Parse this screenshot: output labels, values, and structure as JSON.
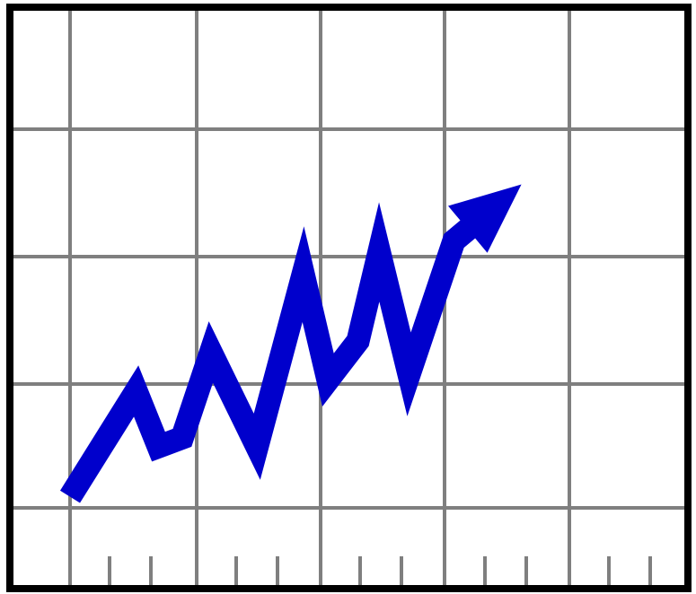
{
  "chart_data": {
    "type": "line",
    "title": "",
    "xlabel": "",
    "ylabel": "",
    "grid": true,
    "legend": "none",
    "xlim": [
      0,
      5
    ],
    "ylim": [
      0,
      4.5
    ],
    "x": [
      0,
      0.53,
      0.71,
      0.9,
      1.13,
      1.5,
      1.87,
      2.07,
      2.31,
      2.48,
      2.72,
      3.08,
      3.4
    ],
    "series": [
      {
        "values": [
          0.1,
          1.05,
          0.55,
          0.63,
          1.4,
          0.55,
          2.1,
          1.15,
          1.5,
          2.3,
          1.2,
          2.4,
          2.7
        ],
        "color": "#0000cc",
        "ends_with_arrow": true
      }
    ],
    "axis_color": "#000000",
    "grid_color": "#7f7f7f"
  }
}
